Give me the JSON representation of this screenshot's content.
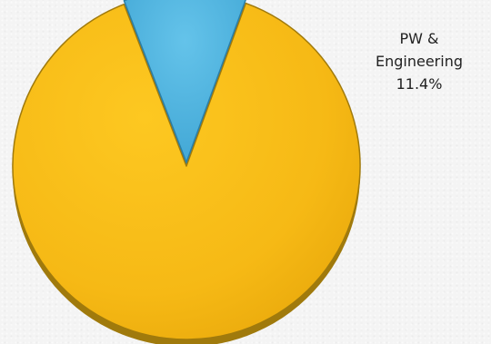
{
  "chart_data": {
    "type": "pie",
    "slices": [
      {
        "label": "",
        "value": 88.6,
        "color": "#f6b915",
        "edge": "#a07a0c"
      },
      {
        "label": "PW & Engineering",
        "value": 11.4,
        "color": "#4db1dd",
        "edge": "#2a7fa8"
      }
    ],
    "data_labels": {
      "pw_line1": "PW &",
      "pw_line2": "Engineering",
      "pw_value": "11.4%"
    },
    "legend": "none",
    "grid": false
  }
}
